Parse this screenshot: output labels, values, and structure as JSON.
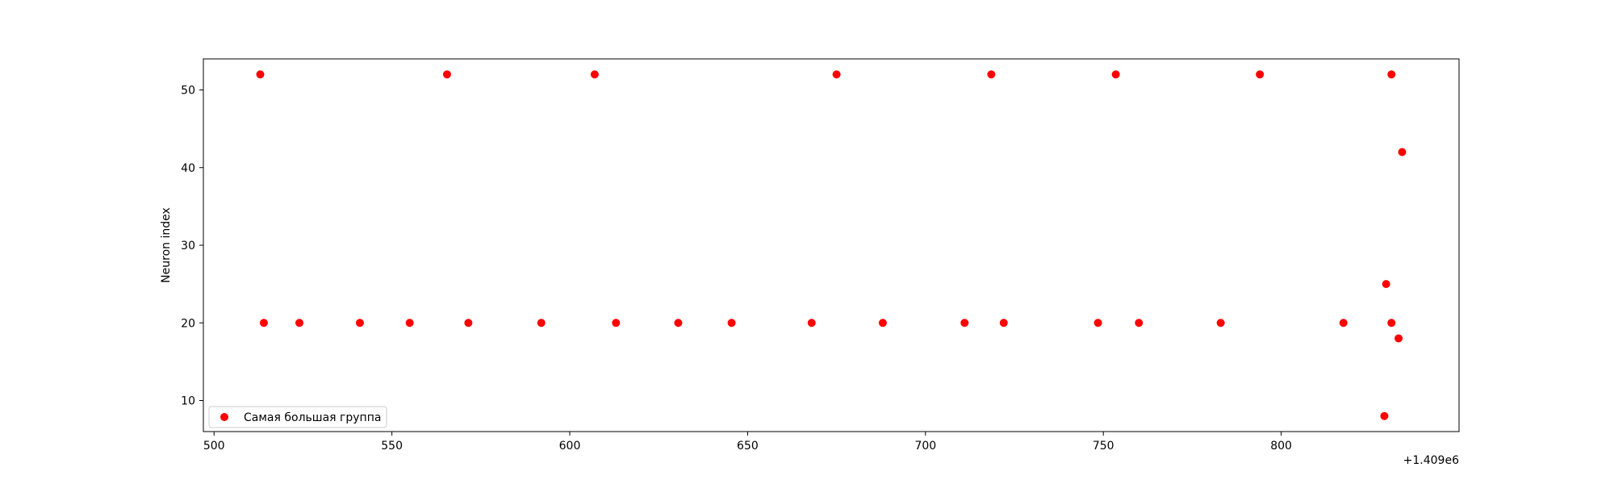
{
  "chart_data": {
    "type": "scatter",
    "title": "",
    "xlabel": "",
    "ylabel": "Neuron index",
    "x_offset_label": "+1.409e6",
    "xlim": [
      497,
      850
    ],
    "ylim": [
      6,
      54
    ],
    "x_ticks": [
      500,
      550,
      600,
      650,
      700,
      750,
      800
    ],
    "x_tick_labels": [
      "500",
      "550",
      "600",
      "650",
      "700",
      "750",
      "800"
    ],
    "y_ticks": [
      10,
      20,
      30,
      40,
      50
    ],
    "y_tick_labels": [
      "10",
      "20",
      "30",
      "40",
      "50"
    ],
    "grid": false,
    "legend_position": "lower-left",
    "series": [
      {
        "name": "Самая большая группа",
        "color": "#ff0000",
        "marker": "circle",
        "points": [
          [
            513,
            52
          ],
          [
            514,
            20
          ],
          [
            524,
            20
          ],
          [
            541,
            20
          ],
          [
            555,
            20
          ],
          [
            565.5,
            52
          ],
          [
            571.5,
            20
          ],
          [
            592,
            20
          ],
          [
            607,
            52
          ],
          [
            613,
            20
          ],
          [
            630.5,
            20
          ],
          [
            645.5,
            20
          ],
          [
            668,
            20
          ],
          [
            675,
            52
          ],
          [
            688,
            20
          ],
          [
            711,
            20
          ],
          [
            718.5,
            52
          ],
          [
            722,
            20
          ],
          [
            748.5,
            20
          ],
          [
            753.5,
            52
          ],
          [
            760,
            20
          ],
          [
            783,
            20
          ],
          [
            794,
            52
          ],
          [
            817.5,
            20
          ],
          [
            829,
            8
          ],
          [
            829.5,
            25
          ],
          [
            831,
            52
          ],
          [
            831,
            20
          ],
          [
            833,
            18
          ],
          [
            834,
            42
          ]
        ]
      }
    ]
  }
}
